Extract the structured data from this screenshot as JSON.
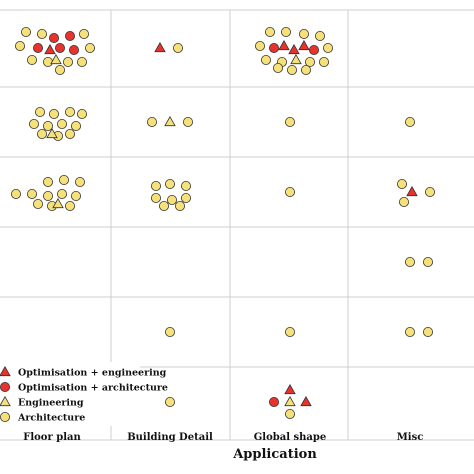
{
  "chart_data": {
    "type": "scatter",
    "xlabel": "Application",
    "categories": [
      "Floor plan",
      "Building Detail",
      "Global shape",
      "Misc"
    ],
    "rows": 6,
    "grid": true,
    "legend_position": "bottom-left",
    "series": [
      {
        "name": "Optimisation + engineering",
        "marker": "triangle",
        "color": "#e8322d"
      },
      {
        "name": "Optimisation + architecture",
        "marker": "circle",
        "color": "#e8322d"
      },
      {
        "name": "Engineering",
        "marker": "triangle",
        "color": "#f5e07a"
      },
      {
        "name": "Architecture",
        "marker": "circle",
        "color": "#f5e07a"
      }
    ],
    "cells": [
      {
        "col": 0,
        "row": 0,
        "points": [
          [
            "Architecture",
            -26,
            -16
          ],
          [
            "Architecture",
            -10,
            -14
          ],
          [
            "Optimisation + architecture",
            2,
            -10
          ],
          [
            "Optimisation + architecture",
            18,
            -12
          ],
          [
            "Architecture",
            32,
            -14
          ],
          [
            "Architecture",
            -32,
            -2
          ],
          [
            "Optimisation + architecture",
            -14,
            0
          ],
          [
            "Optimisation + engineering",
            -2,
            2
          ],
          [
            "Optimisation + architecture",
            8,
            0
          ],
          [
            "Optimisation + architecture",
            22,
            2
          ],
          [
            "Architecture",
            38,
            0
          ],
          [
            "Architecture",
            -20,
            12
          ],
          [
            "Architecture",
            -4,
            14
          ],
          [
            "Engineering",
            4,
            12
          ],
          [
            "Architecture",
            16,
            14
          ],
          [
            "Architecture",
            30,
            14
          ],
          [
            "Architecture",
            8,
            22
          ]
        ]
      },
      {
        "col": 1,
        "row": 0,
        "points": [
          [
            "Optimisation + engineering",
            -10,
            0
          ],
          [
            "Architecture",
            8,
            0
          ]
        ]
      },
      {
        "col": 2,
        "row": 0,
        "points": [
          [
            "Architecture",
            -20,
            -16
          ],
          [
            "Architecture",
            -4,
            -16
          ],
          [
            "Architecture",
            14,
            -14
          ],
          [
            "Architecture",
            30,
            -12
          ],
          [
            "Architecture",
            -30,
            -2
          ],
          [
            "Optimisation + architecture",
            -16,
            0
          ],
          [
            "Optimisation + engineering",
            -6,
            -2
          ],
          [
            "Optimisation + engineering",
            4,
            2
          ],
          [
            "Optimisation + engineering",
            14,
            -2
          ],
          [
            "Optimisation + architecture",
            24,
            2
          ],
          [
            "Architecture",
            38,
            0
          ],
          [
            "Architecture",
            -24,
            12
          ],
          [
            "Architecture",
            -8,
            14
          ],
          [
            "Engineering",
            6,
            12
          ],
          [
            "Architecture",
            20,
            14
          ],
          [
            "Architecture",
            34,
            14
          ],
          [
            "Architecture",
            -12,
            20
          ],
          [
            "Architecture",
            2,
            22
          ],
          [
            "Architecture",
            16,
            22
          ]
        ]
      },
      {
        "col": 0,
        "row": 1,
        "points": [
          [
            "Architecture",
            -12,
            -10
          ],
          [
            "Architecture",
            2,
            -8
          ],
          [
            "Architecture",
            18,
            -10
          ],
          [
            "Architecture",
            30,
            -8
          ],
          [
            "Architecture",
            -18,
            2
          ],
          [
            "Architecture",
            -4,
            4
          ],
          [
            "Architecture",
            10,
            2
          ],
          [
            "Architecture",
            24,
            4
          ],
          [
            "Architecture",
            -10,
            12
          ],
          [
            "Architecture",
            6,
            14
          ],
          [
            "Engineering",
            0,
            12
          ],
          [
            "Architecture",
            18,
            12
          ]
        ]
      },
      {
        "col": 1,
        "row": 1,
        "points": [
          [
            "Architecture",
            -18,
            0
          ],
          [
            "Engineering",
            0,
            0
          ],
          [
            "Architecture",
            18,
            0
          ]
        ]
      },
      {
        "col": 2,
        "row": 1,
        "points": [
          [
            "Architecture",
            0,
            0
          ]
        ]
      },
      {
        "col": 3,
        "row": 1,
        "points": [
          [
            "Architecture",
            0,
            0
          ]
        ]
      },
      {
        "col": 0,
        "row": 2,
        "points": [
          [
            "Architecture",
            -4,
            -10
          ],
          [
            "Architecture",
            12,
            -12
          ],
          [
            "Architecture",
            28,
            -10
          ],
          [
            "Architecture",
            -36,
            2
          ],
          [
            "Architecture",
            -20,
            2
          ],
          [
            "Architecture",
            -4,
            4
          ],
          [
            "Architecture",
            10,
            2
          ],
          [
            "Architecture",
            24,
            4
          ],
          [
            "Architecture",
            -14,
            12
          ],
          [
            "Architecture",
            0,
            14
          ],
          [
            "Engineering",
            6,
            12
          ],
          [
            "Architecture",
            18,
            14
          ]
        ]
      },
      {
        "col": 1,
        "row": 2,
        "points": [
          [
            "Architecture",
            -14,
            -6
          ],
          [
            "Architecture",
            0,
            -8
          ],
          [
            "Architecture",
            16,
            -6
          ],
          [
            "Architecture",
            -14,
            6
          ],
          [
            "Architecture",
            2,
            8
          ],
          [
            "Architecture",
            16,
            6
          ],
          [
            "Architecture",
            -6,
            14
          ],
          [
            "Architecture",
            10,
            14
          ]
        ]
      },
      {
        "col": 2,
        "row": 2,
        "points": [
          [
            "Architecture",
            0,
            0
          ]
        ]
      },
      {
        "col": 3,
        "row": 2,
        "points": [
          [
            "Architecture",
            -8,
            -8
          ],
          [
            "Optimisation + engineering",
            2,
            0
          ],
          [
            "Architecture",
            20,
            0
          ],
          [
            "Architecture",
            -6,
            10
          ]
        ]
      },
      {
        "col": 3,
        "row": 3,
        "points": [
          [
            "Architecture",
            0,
            0
          ],
          [
            "Architecture",
            18,
            0
          ]
        ]
      },
      {
        "col": 1,
        "row": 4,
        "points": [
          [
            "Architecture",
            0,
            0
          ]
        ]
      },
      {
        "col": 2,
        "row": 4,
        "points": [
          [
            "Architecture",
            0,
            0
          ]
        ]
      },
      {
        "col": 3,
        "row": 4,
        "points": [
          [
            "Architecture",
            0,
            0
          ],
          [
            "Architecture",
            18,
            0
          ]
        ]
      },
      {
        "col": 1,
        "row": 5,
        "points": [
          [
            "Architecture",
            0,
            0
          ]
        ]
      },
      {
        "col": 2,
        "row": 5,
        "points": [
          [
            "Optimisation + engineering",
            0,
            -12
          ],
          [
            "Optimisation + architecture",
            -16,
            0
          ],
          [
            "Engineering",
            0,
            0
          ],
          [
            "Optimisation + engineering",
            16,
            0
          ],
          [
            "Architecture",
            0,
            12
          ]
        ]
      }
    ]
  }
}
